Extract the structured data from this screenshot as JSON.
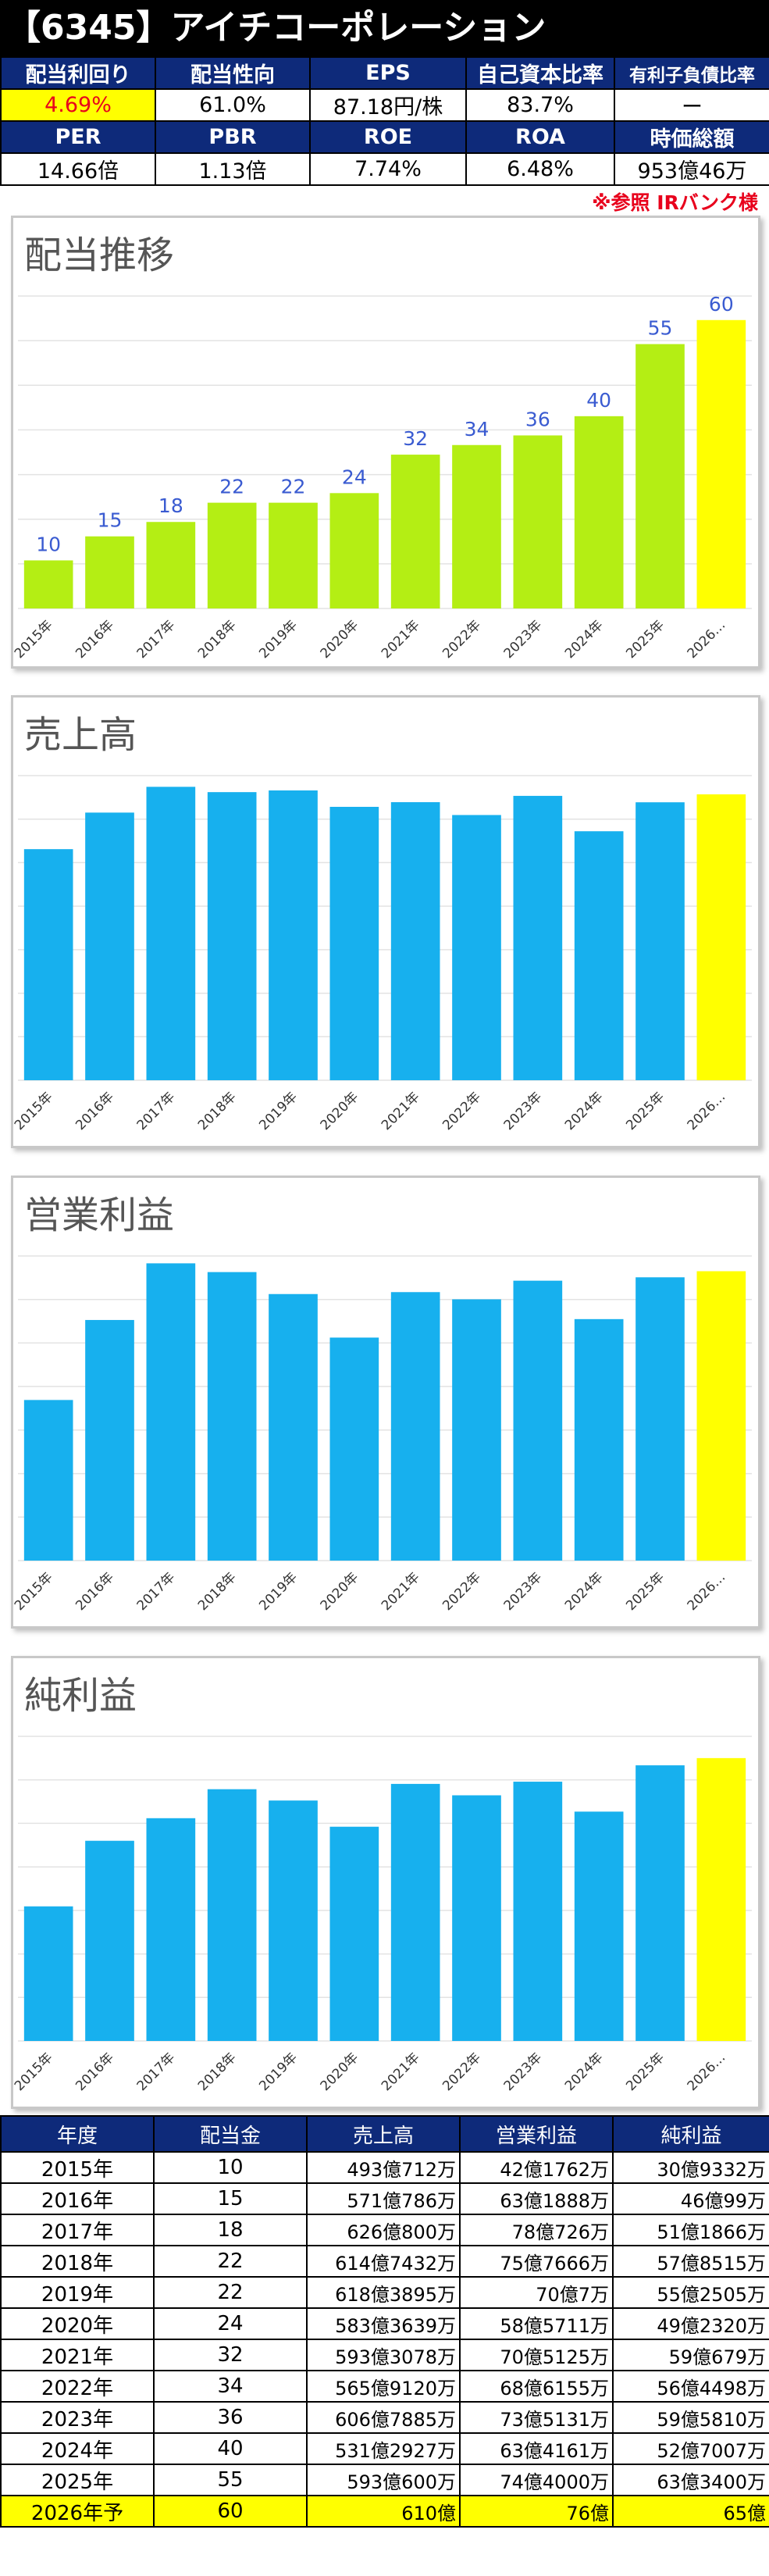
{
  "header": {
    "title": "【6345】アイチコーポレーション",
    "row1_labels": [
      "配当利回り",
      "配当性向",
      "EPS",
      "自己資本比率",
      "有利子負債比率"
    ],
    "row1_values": [
      "4.69%",
      "61.0%",
      "87.18円/株",
      "83.7%",
      "ー"
    ],
    "row2_labels": [
      "PER",
      "PBR",
      "ROE",
      "ROA",
      "時価総額"
    ],
    "row2_values": [
      "14.66倍",
      "1.13倍",
      "7.74%",
      "6.48%",
      "953億46万"
    ],
    "note": "※参照 IRバンク様"
  },
  "colors": {
    "bar": "#b4ee14",
    "bar_blue": "#17b0ee",
    "forecast": "#ffff00",
    "header_bg": "#0e2a7a",
    "highlight_text": "#e8001c"
  },
  "chart_data": [
    {
      "type": "bar",
      "title": "配当推移",
      "categories": [
        "2015年",
        "2016年",
        "2017年",
        "2018年",
        "2019年",
        "2020年",
        "2021年",
        "2022年",
        "2023年",
        "2024年",
        "2025年",
        "2026…"
      ],
      "values": [
        10,
        15,
        18,
        22,
        22,
        24,
        32,
        34,
        36,
        40,
        55,
        60
      ],
      "data_labels": [
        "10",
        "15",
        "18",
        "22",
        "22",
        "24",
        "32",
        "34",
        "36",
        "40",
        "55",
        "60"
      ],
      "ylim": [
        0,
        65
      ],
      "grid": true
    },
    {
      "type": "bar",
      "title": "売上高",
      "categories": [
        "2015年",
        "2016年",
        "2017年",
        "2018年",
        "2019年",
        "2020年",
        "2021年",
        "2022年",
        "2023年",
        "2024年",
        "2025年",
        "2026…"
      ],
      "values": [
        493.07,
        571.08,
        626.08,
        614.74,
        618.39,
        583.36,
        593.31,
        565.91,
        606.79,
        531.29,
        593.06,
        610
      ],
      "ylim": [
        0,
        650
      ],
      "grid": true
    },
    {
      "type": "bar",
      "title": "営業利益",
      "categories": [
        "2015年",
        "2016年",
        "2017年",
        "2018年",
        "2019年",
        "2020年",
        "2021年",
        "2022年",
        "2023年",
        "2024年",
        "2025年",
        "2026…"
      ],
      "values": [
        42.18,
        63.19,
        78.07,
        75.77,
        70.0,
        58.57,
        70.51,
        68.62,
        73.51,
        63.42,
        74.4,
        76
      ],
      "ylim": [
        0,
        80
      ],
      "grid": true
    },
    {
      "type": "bar",
      "title": "純利益",
      "categories": [
        "2015年",
        "2016年",
        "2017年",
        "2018年",
        "2019年",
        "2020年",
        "2021年",
        "2022年",
        "2023年",
        "2024年",
        "2025年",
        "2026…"
      ],
      "values": [
        30.93,
        46.0,
        51.19,
        57.85,
        55.25,
        49.23,
        59.07,
        56.45,
        59.58,
        52.7,
        63.34,
        65
      ],
      "ylim": [
        0,
        70
      ],
      "grid": true
    }
  ],
  "table": {
    "headers": [
      "年度",
      "配当金",
      "売上高",
      "営業利益",
      "純利益"
    ],
    "rows": [
      [
        "2015年",
        "10",
        "493億712万",
        "42億1762万",
        "30億9332万"
      ],
      [
        "2016年",
        "15",
        "571億786万",
        "63億1888万",
        "46億99万"
      ],
      [
        "2017年",
        "18",
        "626億800万",
        "78億726万",
        "51億1866万"
      ],
      [
        "2018年",
        "22",
        "614億7432万",
        "75億7666万",
        "57億8515万"
      ],
      [
        "2019年",
        "22",
        "618億3895万",
        "70億7万",
        "55億2505万"
      ],
      [
        "2020年",
        "24",
        "583億3639万",
        "58億5711万",
        "49億2320万"
      ],
      [
        "2021年",
        "32",
        "593億3078万",
        "70億5125万",
        "59億679万"
      ],
      [
        "2022年",
        "34",
        "565億9120万",
        "68億6155万",
        "56億4498万"
      ],
      [
        "2023年",
        "36",
        "606億7885万",
        "73億5131万",
        "59億5810万"
      ],
      [
        "2024年",
        "40",
        "531億2927万",
        "63億4161万",
        "52億7007万"
      ],
      [
        "2025年",
        "55",
        "593億600万",
        "74億4000万",
        "63億3400万"
      ]
    ],
    "forecast_row": [
      "2026年予",
      "60",
      "610億",
      "76億",
      "65億"
    ]
  }
}
